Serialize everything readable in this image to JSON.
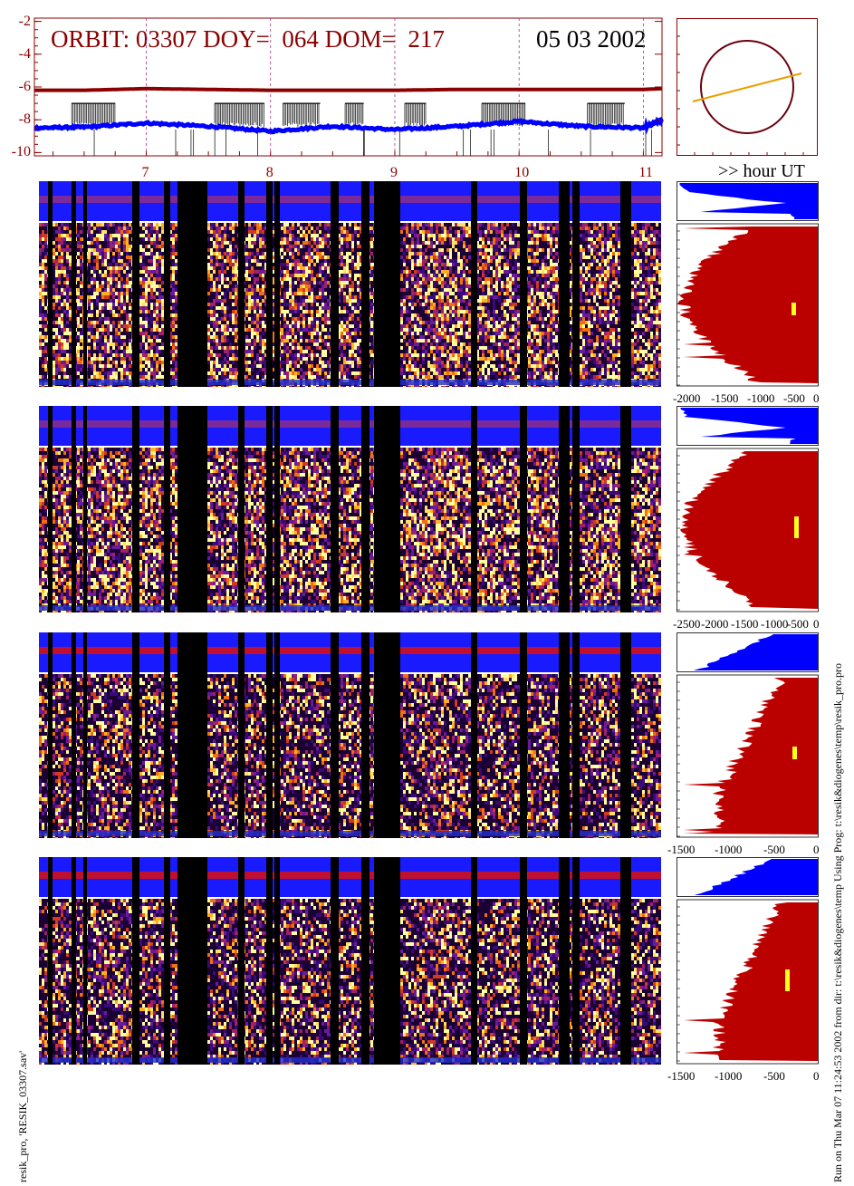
{
  "header": {
    "orbit_title": "ORBIT: 03307 DOY=  064 DOM=  217",
    "date": "05 03 2002"
  },
  "top_plot": {
    "yticks": [
      "-2",
      "-4",
      "-6",
      "-8",
      "-10"
    ],
    "xticks": [
      "7",
      "8",
      "9",
      "10",
      "11"
    ],
    "x_axis_label": ">> hour UT",
    "colors": {
      "axis": "#8b0000",
      "red_line": "#8b0000",
      "blue_line": "#0000ff",
      "grid": "#b0307a"
    }
  },
  "chart_data": {
    "type": "line",
    "x": [
      6.1,
      6.5,
      7.0,
      7.5,
      8.0,
      8.5,
      9.0,
      9.5,
      10.0,
      10.5,
      11.0,
      11.15
    ],
    "series": [
      {
        "values": [
          -6.2,
          -6.2,
          -6.1,
          -6.15,
          -6.2,
          -6.2,
          -6.2,
          -6.15,
          -6.15,
          -6.15,
          -6.15,
          -6.1
        ]
      },
      {
        "values": [
          -8.5,
          -8.45,
          -8.2,
          -8.4,
          -8.7,
          -8.4,
          -8.6,
          -8.4,
          -8.1,
          -8.4,
          -8.5,
          -8.0
        ]
      }
    ],
    "xlim": [
      6.1,
      11.15
    ],
    "ylim": [
      -10.2,
      -1.8
    ],
    "grid_x": [
      7,
      8,
      9,
      10,
      11
    ]
  },
  "hist_panels": [
    {
      "ticks": [
        "-2000",
        "-1500",
        "-1000",
        "-500",
        "0"
      ]
    },
    {
      "ticks": [
        "-2500",
        "-2000",
        "-1500",
        "-1000",
        "-500",
        "0"
      ]
    },
    {
      "ticks": [
        "-1500",
        "-1000",
        "-500",
        "0"
      ]
    },
    {
      "ticks": [
        "-1500",
        "-1000",
        "-500",
        "0"
      ]
    }
  ],
  "footer": {
    "left_caption": "resik_pro, 'RESIK_03307.sav'",
    "right_caption": "Run on Thu Mar 07 11:24:53 2002  from dir: t:\\resik&diogenes\\temp Using Prog: t:\\resik&diogenes\\temp\\resik_pro.pro"
  }
}
